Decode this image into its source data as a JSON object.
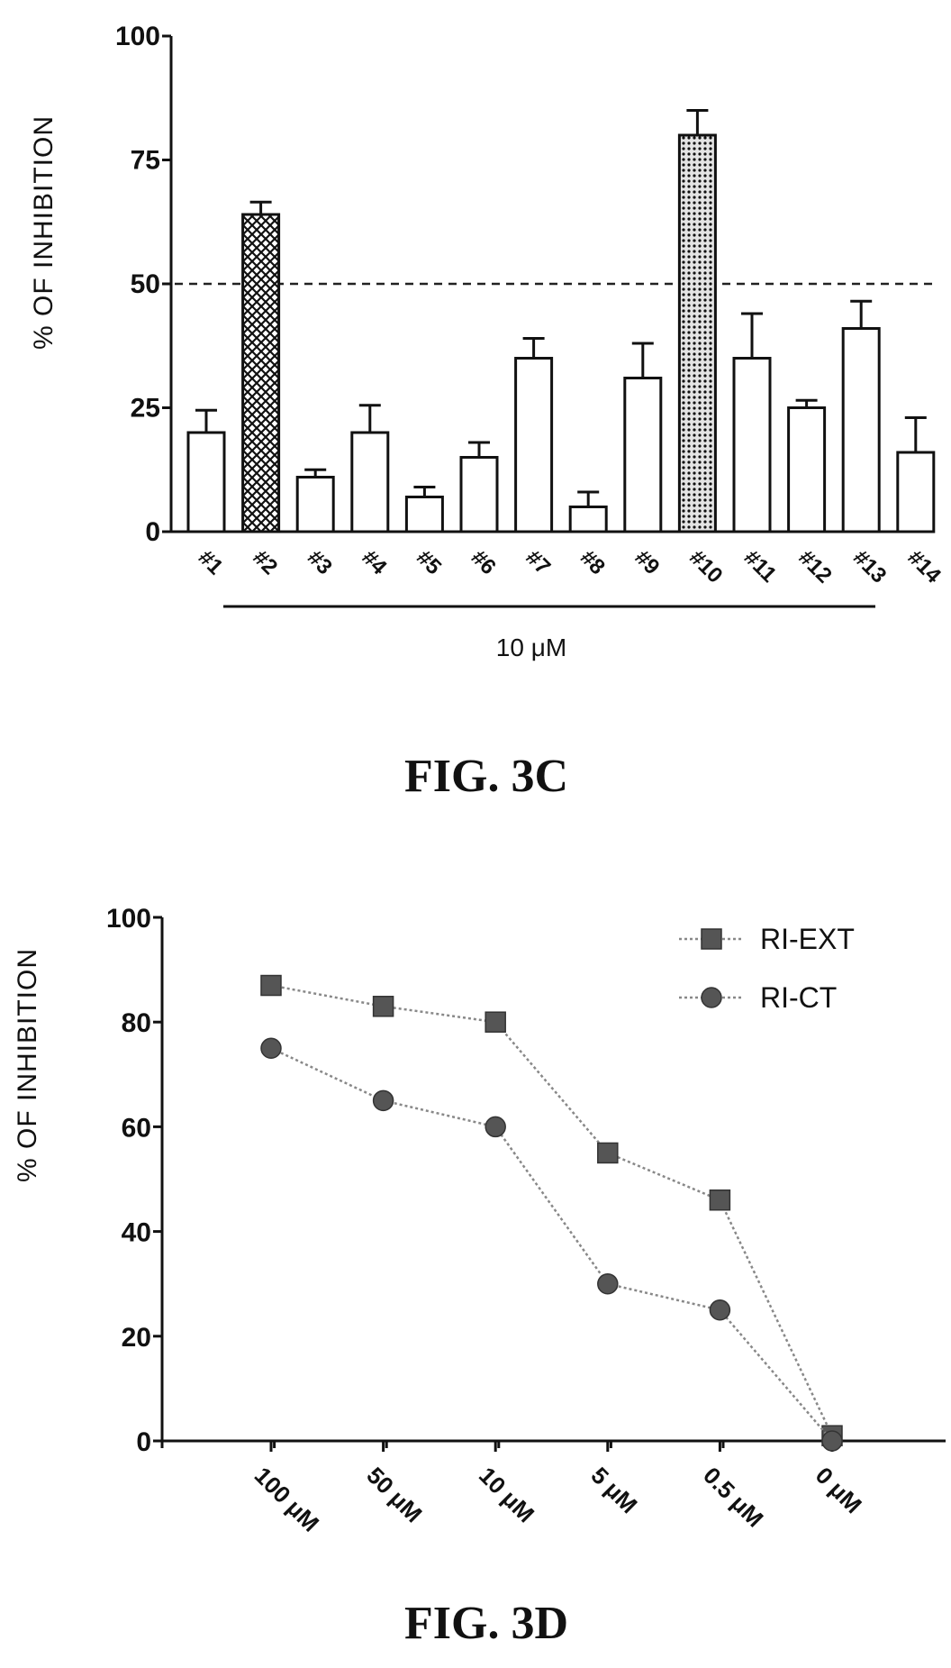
{
  "chart_data": [
    {
      "type": "bar",
      "figure_label": "FIG. 3C",
      "ylabel": "% OF INHIBITION",
      "group_label": "10 μM",
      "ylim": [
        0,
        100
      ],
      "yticks": [
        0,
        25,
        50,
        75,
        100
      ],
      "reference_line": 50,
      "categories": [
        "#1",
        "#2",
        "#3",
        "#4",
        "#5",
        "#6",
        "#7",
        "#8",
        "#9",
        "#10",
        "#11",
        "#12",
        "#13",
        "#14"
      ],
      "values": [
        20,
        64,
        11,
        20,
        7,
        15,
        35,
        5,
        31,
        80,
        35,
        25,
        41,
        16
      ],
      "errors": [
        4.5,
        2.5,
        1.5,
        5.5,
        2,
        3,
        4,
        3,
        7,
        5,
        9,
        1.5,
        5.5,
        7
      ],
      "highlighted": [
        "#2",
        "#10"
      ],
      "grid": false
    },
    {
      "type": "line",
      "figure_label": "FIG. 3D",
      "ylabel": "% OF INHIBITION",
      "ylim": [
        0,
        100
      ],
      "yticks": [
        0,
        20,
        40,
        60,
        80,
        100
      ],
      "x": [
        "100 μM",
        "50 μM",
        "10 μM",
        "5 μM",
        "0.5 μM",
        "0 μM"
      ],
      "series": [
        {
          "name": "RI-EXT",
          "marker": "square",
          "values": [
            87,
            83,
            80,
            55,
            46,
            1
          ]
        },
        {
          "name": "RI-CT",
          "marker": "circle",
          "values": [
            75,
            65,
            60,
            30,
            25,
            0
          ]
        }
      ],
      "legend": "top-right",
      "grid": false
    }
  ]
}
